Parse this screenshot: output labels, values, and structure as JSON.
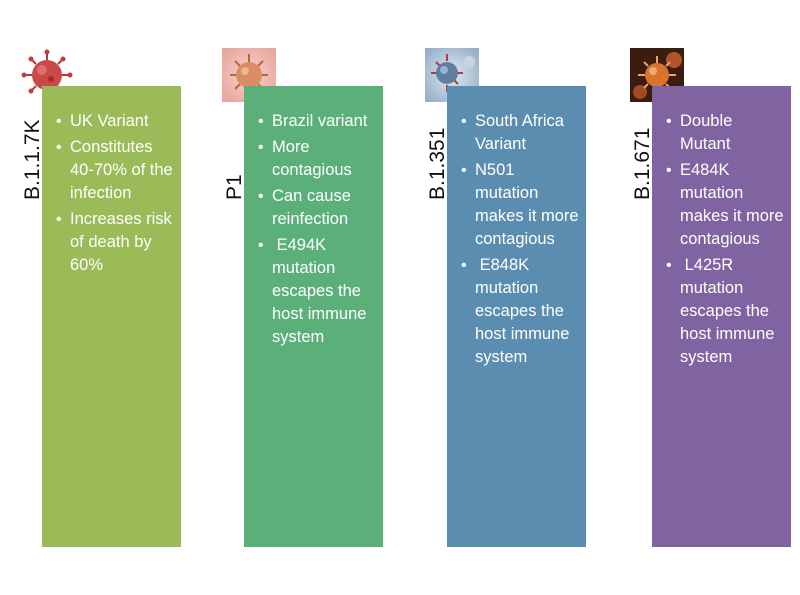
{
  "variants": [
    {
      "name": "B.1.1.7K",
      "image": "coronavirus-red-icon",
      "bullets": [
        "UK Variant",
        "Constitutes 40-70% of the infection",
        "Increases risk of death by 60%"
      ]
    },
    {
      "name": "P1",
      "image": "coronavirus-pink-icon",
      "bullets": [
        "Brazil variant",
        "More contagious",
        "Can cause reinfection",
        " E494K mutation escapes the host immune system"
      ]
    },
    {
      "name": "B.1.351",
      "image": "coronavirus-blue-icon",
      "bullets": [
        "South Africa Variant",
        "N501 mutation makes it more contagious",
        " E848K mutation escapes the host immune system"
      ]
    },
    {
      "name": "B.1.671",
      "image": "coronavirus-orange-icon",
      "bullets": [
        "Double Mutant",
        "E484K mutation makes it more contagious",
        " L425R mutation escapes the host immune system"
      ]
    }
  ],
  "colors": {
    "panel_1": "#9bbb59",
    "panel_2": "#5bb07a",
    "panel_3": "#5b8db0",
    "panel_4": "#8064a2",
    "text": "#ffffff"
  }
}
